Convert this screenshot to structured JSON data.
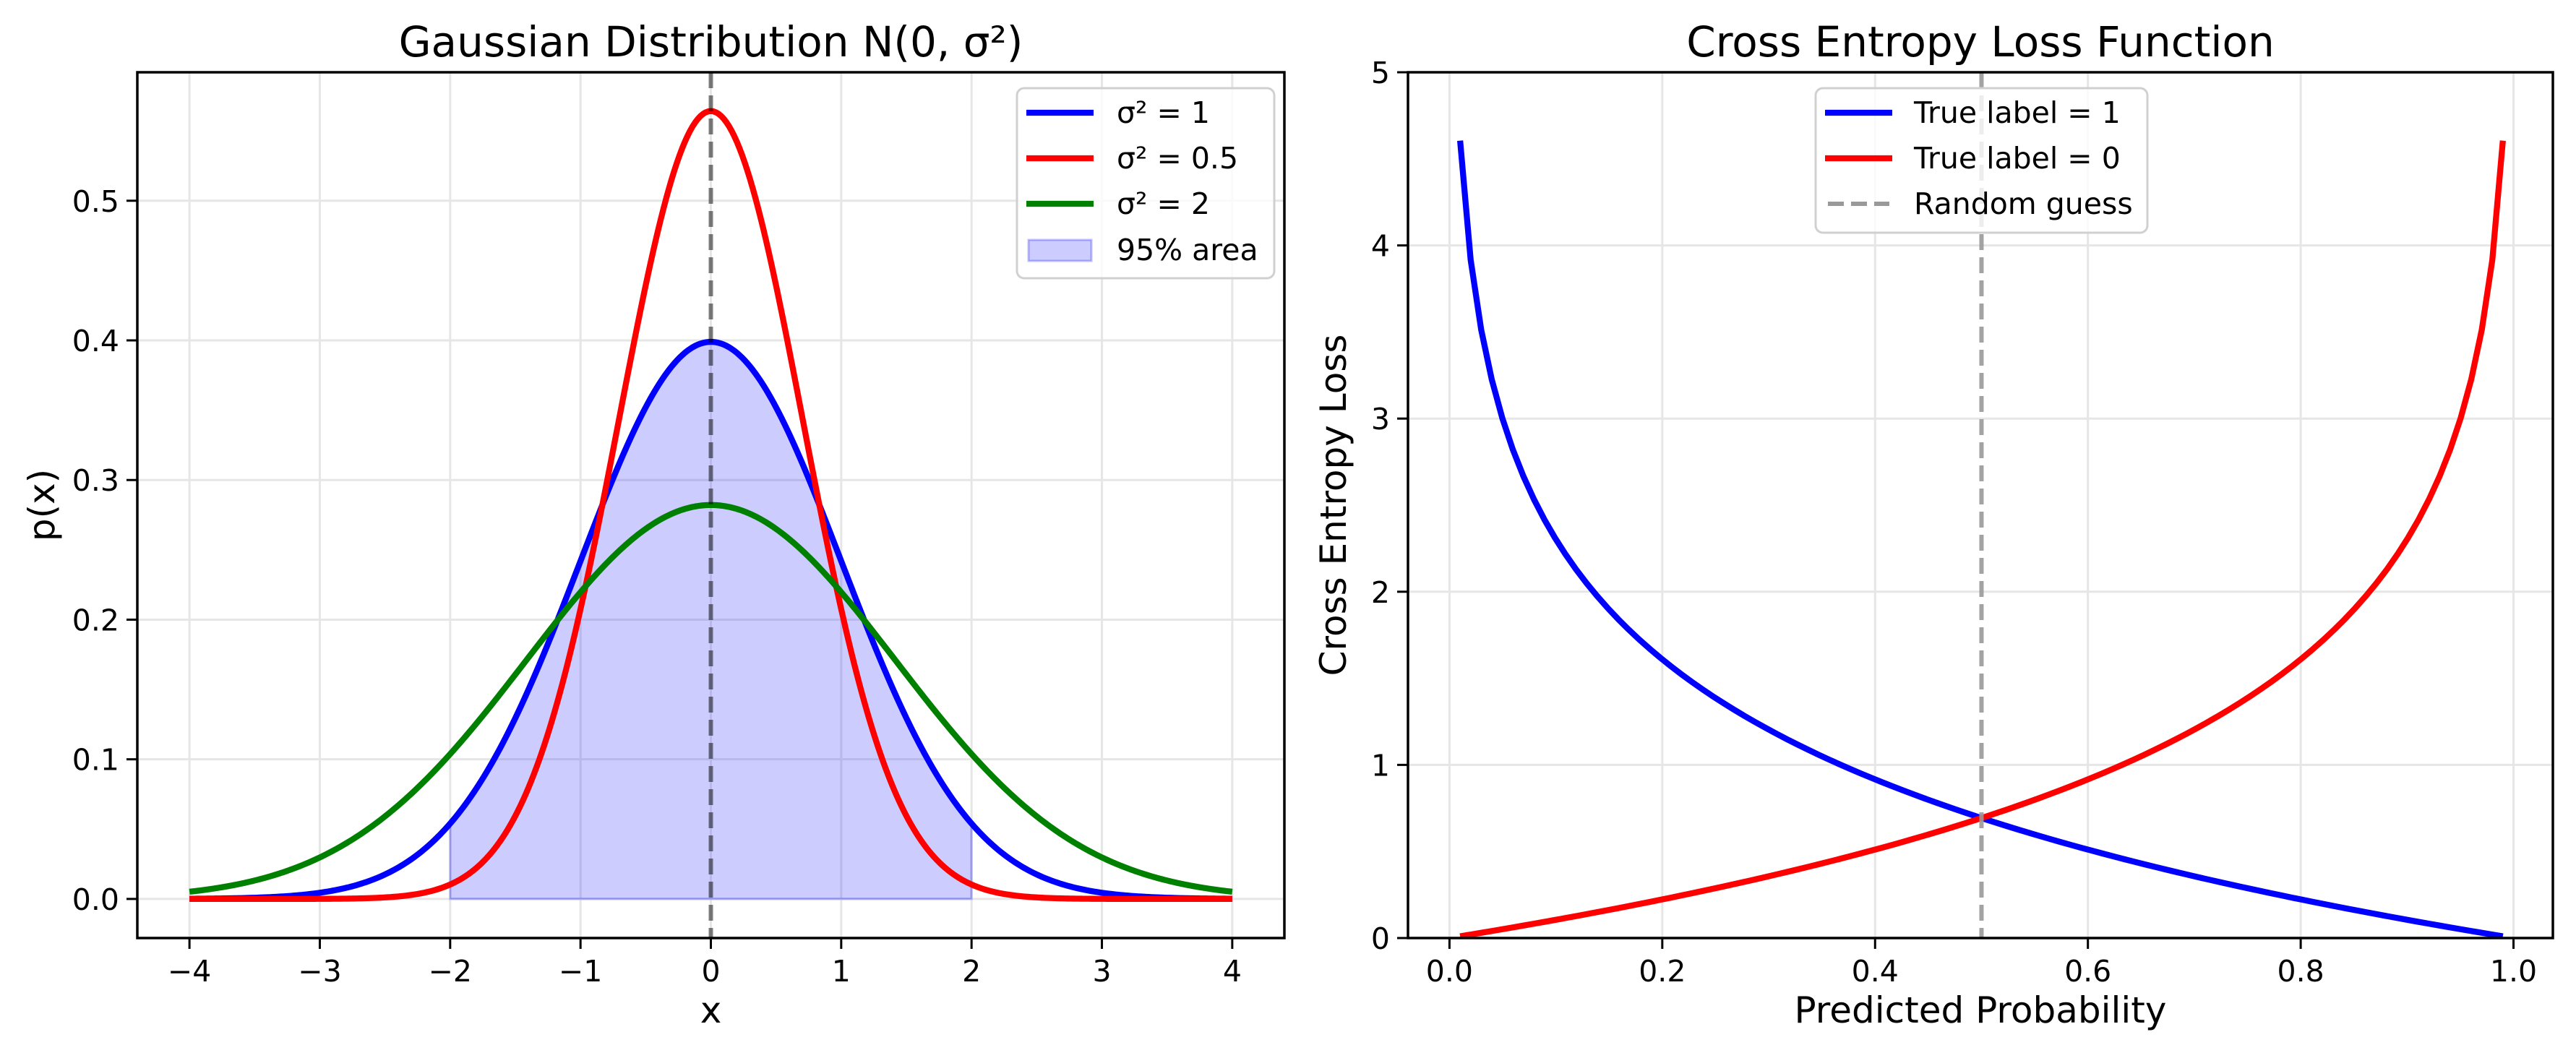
{
  "chart_data": [
    {
      "type": "line",
      "title": "Gaussian Distribution N(0, σ²)",
      "xlabel": "x",
      "ylabel": "p(x)",
      "xlim": [
        -4.4,
        4.4
      ],
      "ylim": [
        -0.028,
        0.592
      ],
      "x_range": [
        -4,
        4
      ],
      "xticks": [
        "−4",
        "−3",
        "−2",
        "−1",
        "0",
        "1",
        "2",
        "3",
        "4"
      ],
      "xtick_values": [
        -4,
        -3,
        -2,
        -1,
        0,
        1,
        2,
        3,
        4
      ],
      "yticks": [
        "0.0",
        "0.1",
        "0.2",
        "0.3",
        "0.4",
        "0.5"
      ],
      "ytick_values": [
        0,
        0.1,
        0.2,
        0.3,
        0.4,
        0.5
      ],
      "grid": true,
      "legend_position": "top-right",
      "series": [
        {
          "name": "σ² = 1",
          "variance": 1,
          "color": "#0000ff",
          "peak": 0.399
        },
        {
          "name": "σ² = 0.5",
          "variance": 0.5,
          "color": "#ff0000",
          "peak": 0.564
        },
        {
          "name": "σ² = 2",
          "variance": 2,
          "color": "#008000",
          "peak": 0.282
        }
      ],
      "fill": {
        "name": "95% area",
        "under_variance": 1,
        "x_from": -2,
        "x_to": 2,
        "color": "#0000ff",
        "alpha": 0.2
      },
      "vline": {
        "x": 0,
        "style": "dashed",
        "color": "#000000"
      }
    },
    {
      "type": "line",
      "title": "Cross Entropy Loss Function",
      "xlabel": "Predicted Probability",
      "ylabel": "Cross Entropy Loss",
      "xlim": [
        -0.039,
        1.037
      ],
      "ylim": [
        0,
        5
      ],
      "p_range": [
        0.01,
        0.99
      ],
      "n_points": 100,
      "xticks": [
        "0.0",
        "0.2",
        "0.4",
        "0.6",
        "0.8",
        "1.0"
      ],
      "xtick_values": [
        0,
        0.2,
        0.4,
        0.6,
        0.8,
        1.0
      ],
      "yticks": [
        "0",
        "1",
        "2",
        "3",
        "4",
        "5"
      ],
      "ytick_values": [
        0,
        1,
        2,
        3,
        4,
        5
      ],
      "grid": true,
      "legend_position": "top-center",
      "series": [
        {
          "name": "True label = 1",
          "formula": "-log(p)",
          "color": "#0000ff"
        },
        {
          "name": "True label = 0",
          "formula": "-log(1-p)",
          "color": "#ff0000"
        }
      ],
      "vline": {
        "name": "Random guess",
        "x": 0.5,
        "style": "dashed",
        "color": "#999999"
      }
    }
  ]
}
